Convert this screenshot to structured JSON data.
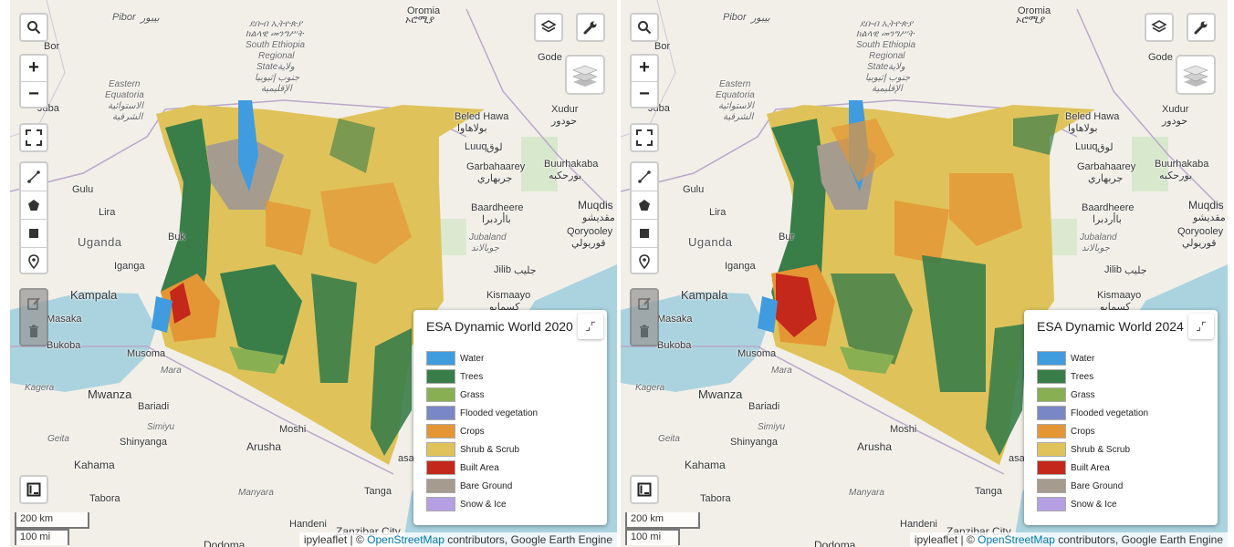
{
  "maps": [
    {
      "legend_title": "ESA Dynamic World 2020",
      "scale_km": "200 km",
      "scale_mi": "100 mi"
    },
    {
      "legend_title": "ESA Dynamic World 2024",
      "scale_km": "200 km",
      "scale_mi": "100 mi"
    }
  ],
  "legend_items": [
    {
      "label": "Water",
      "color": "#419bdf"
    },
    {
      "label": "Trees",
      "color": "#397d49"
    },
    {
      "label": "Grass",
      "color": "#88b053"
    },
    {
      "label": "Flooded vegetation",
      "color": "#7a87c6"
    },
    {
      "label": "Crops",
      "color": "#e49635"
    },
    {
      "label": "Shrub & Scrub",
      "color": "#dfc35a"
    },
    {
      "label": "Built Area",
      "color": "#c4281b"
    },
    {
      "label": "Bare Ground",
      "color": "#a59b8f"
    },
    {
      "label": "Snow & Ice",
      "color": "#b39fe1"
    }
  ],
  "controls": {
    "zoom_in": "+",
    "zoom_out": "−",
    "minimize": "⌟⌜"
  },
  "attribution": {
    "prefix": "ipyleaflet | © ",
    "link": "OpenStreetMap",
    "suffix": " contributors, Google Earth Engine"
  },
  "places": {
    "oromia": "Oromia",
    "oromia_local": "ኦሮሚያ",
    "pibor": "Pibor",
    "pibor_ar": "بيبور",
    "bor": "Bor",
    "gode": "Gode",
    "south_ethiopia_1": "ደቡብ ኢትዮጵያ",
    "south_ethiopia_2": "ክልላዊ መንግሥት",
    "south_ethiopia_3": "South Ethiopia",
    "south_ethiopia_4": "Regional",
    "south_ethiopia_5": "State",
    "south_ethiopia_6": "ولاية",
    "south_ethiopia_7": "جنوب إثيوبيا",
    "south_ethiopia_8": "الإقليمية",
    "eastern_equatoria_1": "Eastern",
    "eastern_equatoria_2": "Equatoria",
    "eastern_equatoria_3": "الاستوائية",
    "eastern_equatoria_4": "الشرقية",
    "juba": "Juba",
    "xudur": "Xudur",
    "xudur_ar": "حودور",
    "beled_hawa": "Beled Hawa",
    "beled_hawa_ar": "بولاهاوا",
    "luuq": "Luuq",
    "luuq_ar": "لوق",
    "garbahaarey": "Garbahaarey",
    "garbahaarey_ar": "جربهاري",
    "buurhakaba": "Buurhakaba",
    "buurhakaba_ar": "بورحكبه",
    "muqdisho": "Muqdis",
    "muqdisho_ar": "مقديشو",
    "baardheere": "Baardheere",
    "baardheere_ar": "باأردبرا",
    "gulu": "Gulu",
    "lira": "Lira",
    "uganda": "Uganda",
    "jubaland": "Jubaland",
    "jubaland_ar": "جوبالاند",
    "qoryooley": "Qoryooley",
    "qoryooley_ar": "قوريولي",
    "iganga": "Iganga",
    "jilib": "Jilib",
    "jilib_ar": "جليب",
    "kampala": "Kampala",
    "kismayo": "Kismaayo",
    "kismayo_ar": "كسمايو",
    "masaka": "Masaka",
    "bukoba": "Bukoba",
    "musoma": "Musoma",
    "mara": "Mara",
    "kagera": "Kagera",
    "mwanza": "Mwanza",
    "bariadi": "Bariadi",
    "simiyu": "Simiyu",
    "geita": "Geita",
    "moshi": "Moshi",
    "shinyanga": "Shinyanga",
    "arusha": "Arusha",
    "kahama": "Kahama",
    "manyara": "Manyara",
    "tabora": "Tabora",
    "tanga": "Tanga",
    "handeni": "Handeni",
    "zanzibar": "Zanzibar City",
    "dodoma": "Dodoma",
    "buk": "Buk",
    "bur": "Bur",
    "asa": "asa"
  }
}
